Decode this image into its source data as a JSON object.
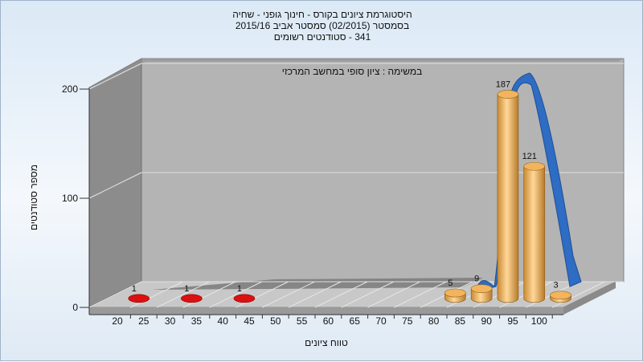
{
  "header": {
    "line1": "היסטוגרמת ציונים בקורס - חינוך גופני - שחיה",
    "line2": "בסמסטר  (02/2015)  סמסטר אביב 2015/16",
    "line3": "341 - סטודנטים רשומים"
  },
  "chart_data": {
    "type": "bar",
    "title": "היסטוגרמת ציונים בקורס - חינוך גופני - שחיה",
    "annotation": "במשימה : ציון סופי במחשב המרכזי",
    "xlabel": "טווח ציונים",
    "ylabel": "מספר סטודנטים",
    "ylim": [
      0,
      200
    ],
    "y_ticks": [
      0,
      100,
      200
    ],
    "x_ticks": [
      20,
      25,
      30,
      35,
      40,
      45,
      50,
      55,
      60,
      65,
      70,
      75,
      80,
      85,
      90,
      95,
      100
    ],
    "bars": [
      {
        "bin": 20,
        "value": 1,
        "label": "1",
        "color": "#cc0000"
      },
      {
        "bin": 30,
        "value": 1,
        "label": "1",
        "color": "#cc0000"
      },
      {
        "bin": 40,
        "value": 1,
        "label": "1",
        "color": "#cc0000"
      },
      {
        "bin": 80,
        "value": 5,
        "label": "5",
        "color": "#e8a84c"
      },
      {
        "bin": 85,
        "value": 9,
        "label": "9",
        "color": "#e8a84c"
      },
      {
        "bin": 90,
        "value": 187,
        "label": "187",
        "color": "#e8a84c"
      },
      {
        "bin": 95,
        "value": 121,
        "label": "121",
        "color": "#e8a84c"
      },
      {
        "bin": 100,
        "value": 3,
        "label": "3",
        "color": "#e8a84c"
      }
    ],
    "curve_color": "#2f6cc3",
    "grid": true
  }
}
